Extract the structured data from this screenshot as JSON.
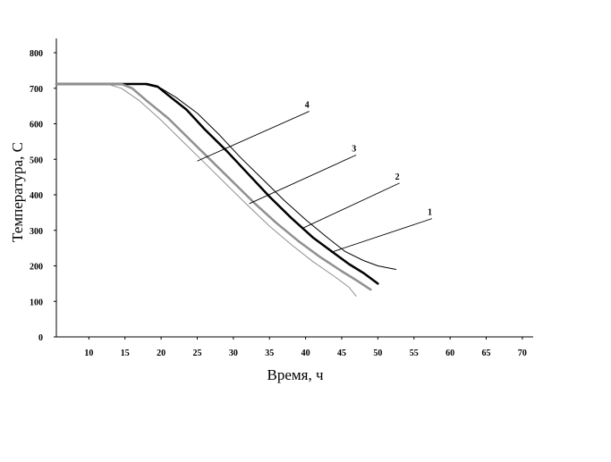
{
  "chart_data": {
    "type": "line",
    "title": "",
    "xlabel": "Время, ч",
    "ylabel": "Температура, С",
    "xlim": [
      5.5,
      71.5
    ],
    "ylim": [
      0,
      800
    ],
    "xticks": [
      10,
      15,
      20,
      25,
      30,
      35,
      40,
      45,
      50,
      55,
      60,
      65,
      70
    ],
    "yticks": [
      0,
      100,
      200,
      300,
      400,
      500,
      600,
      700,
      800
    ],
    "grid": false,
    "legend": "none",
    "series": [
      {
        "name": "1",
        "color": "#000000",
        "stroke": 1,
        "points": [
          [
            5.5,
            712
          ],
          [
            17.5,
            712
          ],
          [
            20,
            700
          ],
          [
            22,
            675
          ],
          [
            25,
            630
          ],
          [
            28,
            570
          ],
          [
            31,
            505
          ],
          [
            34,
            445
          ],
          [
            37,
            385
          ],
          [
            40,
            330
          ],
          [
            43,
            280
          ],
          [
            45.5,
            240
          ],
          [
            48,
            215
          ],
          [
            50,
            200
          ],
          [
            52.5,
            190
          ]
        ]
      },
      {
        "name": "2",
        "color": "#000000",
        "stroke": 2.5,
        "points": [
          [
            5.5,
            712
          ],
          [
            18,
            712
          ],
          [
            19.5,
            705
          ],
          [
            21,
            680
          ],
          [
            23.5,
            640
          ],
          [
            26,
            585
          ],
          [
            29,
            525
          ],
          [
            32,
            460
          ],
          [
            35,
            395
          ],
          [
            38,
            335
          ],
          [
            41,
            280
          ],
          [
            44,
            235
          ],
          [
            46,
            205
          ],
          [
            48,
            180
          ],
          [
            50,
            150
          ]
        ]
      },
      {
        "name": "3",
        "color": "#909090",
        "stroke": 2.5,
        "points": [
          [
            5.5,
            712
          ],
          [
            14.5,
            712
          ],
          [
            16,
            700
          ],
          [
            18,
            665
          ],
          [
            21,
            615
          ],
          [
            24,
            555
          ],
          [
            27,
            495
          ],
          [
            30,
            435
          ],
          [
            33,
            375
          ],
          [
            36,
            320
          ],
          [
            39,
            270
          ],
          [
            42,
            225
          ],
          [
            45,
            185
          ],
          [
            47,
            160
          ],
          [
            49,
            133
          ]
        ]
      },
      {
        "name": "4",
        "color": "#909090",
        "stroke": 1,
        "points": [
          [
            5.5,
            712
          ],
          [
            12.5,
            712
          ],
          [
            14.5,
            700
          ],
          [
            17,
            665
          ],
          [
            20,
            610
          ],
          [
            23,
            550
          ],
          [
            26,
            490
          ],
          [
            29,
            430
          ],
          [
            32,
            370
          ],
          [
            35,
            312
          ],
          [
            38,
            260
          ],
          [
            41,
            212
          ],
          [
            44,
            170
          ],
          [
            46,
            140
          ],
          [
            47,
            115
          ]
        ]
      }
    ],
    "callouts": [
      {
        "label": "1",
        "from": [
          43.5,
          238
        ],
        "to": [
          57.5,
          333
        ],
        "label_at": [
          57.2,
          343
        ]
      },
      {
        "label": "2",
        "from": [
          39.5,
          305
        ],
        "to": [
          53,
          433
        ],
        "label_at": [
          52.7,
          443
        ]
      },
      {
        "label": "3",
        "from": [
          32.2,
          375
        ],
        "to": [
          47,
          512
        ],
        "label_at": [
          46.7,
          522
        ]
      },
      {
        "label": "4",
        "from": [
          25,
          495
        ],
        "to": [
          40.5,
          635
        ],
        "label_at": [
          40.2,
          645
        ]
      }
    ]
  }
}
